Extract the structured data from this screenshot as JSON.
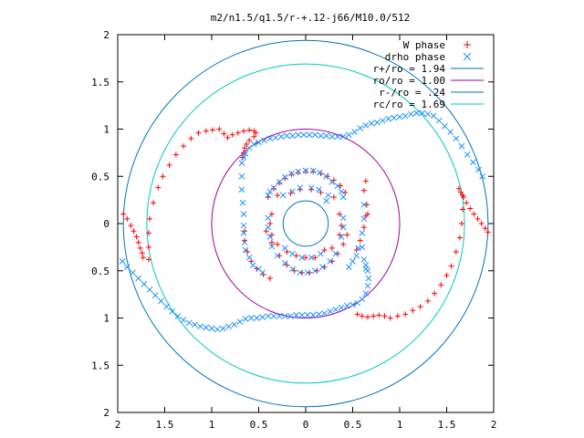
{
  "chart_data": {
    "type": "scatter",
    "title": "m2/n1.5/q1.5/r-+.12-j66/M10.0/512",
    "xlim": [
      -2,
      2
    ],
    "ylim": [
      -2,
      2
    ],
    "x_tick_labels": [
      "2",
      "1.5",
      "1",
      "0.5",
      "0",
      "0.5",
      "1",
      "1.5",
      "2"
    ],
    "y_tick_labels": [
      "2",
      "1.5",
      "1",
      "0.5",
      "0",
      "0.5",
      "1",
      "1.5",
      "2"
    ],
    "x_tick_values": [
      -2,
      -1.5,
      -1,
      -0.5,
      0,
      0.5,
      1,
      1.5,
      2
    ],
    "y_tick_values": [
      2,
      1.5,
      1,
      0.5,
      0,
      -0.5,
      -1,
      -1.5,
      -2
    ],
    "grid": false,
    "legend_position": "top-right",
    "series": [
      {
        "name": "W phase",
        "kind": "points",
        "marker": "plus",
        "color": "#ff0000",
        "points": [
          [
            -1.94,
            0.1
          ],
          [
            -1.9,
            0.05
          ],
          [
            -1.86,
            -0.02
          ],
          [
            -1.83,
            -0.08
          ],
          [
            -1.8,
            -0.14
          ],
          [
            -1.78,
            -0.2
          ],
          [
            -1.76,
            -0.26
          ],
          [
            -1.74,
            -0.31
          ],
          [
            -1.73,
            -0.36
          ],
          [
            -1.67,
            -0.38
          ],
          [
            -1.67,
            -0.25
          ],
          [
            -1.67,
            -0.1
          ],
          [
            -1.66,
            0.05
          ],
          [
            -1.62,
            0.22
          ],
          [
            -1.57,
            0.38
          ],
          [
            -1.52,
            0.5
          ],
          [
            -1.45,
            0.62
          ],
          [
            -1.38,
            0.73
          ],
          [
            -1.3,
            0.82
          ],
          [
            -1.22,
            0.9
          ],
          [
            -1.14,
            0.96
          ],
          [
            -1.06,
            0.98
          ],
          [
            -0.99,
            0.99
          ],
          [
            -0.92,
            1.0
          ],
          [
            -0.87,
            0.95
          ],
          [
            -0.83,
            0.91
          ],
          [
            -0.78,
            0.94
          ],
          [
            -0.72,
            0.96
          ],
          [
            -0.66,
            0.98
          ],
          [
            -0.6,
            0.99
          ],
          [
            -0.55,
            0.98
          ],
          [
            -0.53,
            0.96
          ],
          [
            -0.55,
            0.92
          ],
          [
            -0.6,
            0.88
          ],
          [
            -0.63,
            0.84
          ],
          [
            -0.65,
            0.8
          ],
          [
            -0.66,
            0.75
          ],
          [
            -0.67,
            0.7
          ],
          [
            1.63,
            0.37
          ],
          [
            1.65,
            0.33
          ],
          [
            1.68,
            0.28
          ],
          [
            1.71,
            0.22
          ],
          [
            1.75,
            0.16
          ],
          [
            1.79,
            0.1
          ],
          [
            1.83,
            0.05
          ],
          [
            1.87,
            0.0
          ],
          [
            1.91,
            -0.05
          ],
          [
            1.94,
            -0.09
          ],
          [
            1.67,
            0.3
          ],
          [
            1.67,
            0.15
          ],
          [
            1.66,
            0.0
          ],
          [
            1.64,
            -0.15
          ],
          [
            1.6,
            -0.3
          ],
          [
            1.55,
            -0.45
          ],
          [
            1.5,
            -0.55
          ],
          [
            1.44,
            -0.65
          ],
          [
            1.37,
            -0.74
          ],
          [
            1.3,
            -0.82
          ],
          [
            1.22,
            -0.88
          ],
          [
            1.14,
            -0.92
          ],
          [
            1.06,
            -0.96
          ],
          [
            0.98,
            -0.98
          ],
          [
            0.9,
            -1.0
          ],
          [
            0.84,
            -0.98
          ],
          [
            0.78,
            -0.97
          ],
          [
            0.72,
            -0.98
          ],
          [
            0.66,
            -0.99
          ],
          [
            0.6,
            -0.98
          ],
          [
            0.55,
            -0.96
          ],
          [
            0.0,
            0.55
          ],
          [
            0.08,
            0.55
          ],
          [
            0.16,
            0.53
          ],
          [
            0.23,
            0.5
          ],
          [
            0.3,
            0.46
          ],
          [
            0.37,
            0.4
          ],
          [
            0.42,
            0.33
          ],
          [
            -0.08,
            0.54
          ],
          [
            -0.15,
            0.52
          ],
          [
            -0.22,
            0.48
          ],
          [
            -0.28,
            0.43
          ],
          [
            -0.34,
            0.37
          ],
          [
            -0.4,
            0.28
          ],
          [
            -0.06,
            0.36
          ],
          [
            0.06,
            0.36
          ],
          [
            0.16,
            0.33
          ],
          [
            -0.16,
            0.32
          ],
          [
            -0.42,
            -0.08
          ],
          [
            -0.36,
            -0.2
          ],
          [
            -0.28,
            -0.34
          ],
          [
            -0.2,
            -0.44
          ],
          [
            -0.12,
            -0.5
          ],
          [
            -0.04,
            -0.52
          ],
          [
            0.04,
            -0.52
          ],
          [
            0.12,
            -0.5
          ],
          [
            0.2,
            -0.46
          ],
          [
            0.28,
            -0.4
          ],
          [
            0.34,
            -0.32
          ],
          [
            0.4,
            -0.22
          ],
          [
            0.44,
            -0.12
          ],
          [
            0.0,
            -0.36
          ],
          [
            0.1,
            -0.36
          ],
          [
            -0.1,
            -0.34
          ],
          [
            0.2,
            -0.28
          ],
          [
            -0.2,
            -0.3
          ],
          [
            -0.65,
            -0.08
          ],
          [
            -0.65,
            -0.18
          ],
          [
            -0.62,
            -0.3
          ],
          [
            -0.58,
            -0.4
          ],
          [
            -0.52,
            -0.48
          ],
          [
            -0.45,
            -0.54
          ],
          [
            -0.38,
            -0.58
          ],
          [
            0.65,
            0.2
          ],
          [
            0.64,
            0.08
          ],
          [
            0.62,
            -0.04
          ],
          [
            0.58,
            -0.18
          ],
          [
            0.54,
            -0.28
          ],
          [
            0.62,
            0.35
          ],
          [
            0.64,
            0.45
          ],
          [
            0.66,
            0.1
          ],
          [
            -0.36,
            0.1
          ],
          [
            -0.38,
            0.0
          ],
          [
            -0.36,
            -0.12
          ],
          [
            0.36,
            0.1
          ],
          [
            0.38,
            -0.02
          ],
          [
            0.36,
            -0.12
          ],
          [
            -0.3,
            0.3
          ],
          [
            0.3,
            0.28
          ],
          [
            -0.3,
            -0.22
          ],
          [
            0.28,
            -0.26
          ]
        ]
      },
      {
        "name": "drho phase",
        "kind": "points",
        "marker": "cross",
        "color": "#1e90ff",
        "points": [
          [
            -1.95,
            -0.4
          ],
          [
            -1.9,
            -0.46
          ],
          [
            -1.84,
            -0.52
          ],
          [
            -1.78,
            -0.58
          ],
          [
            -1.72,
            -0.64
          ],
          [
            -1.66,
            -0.7
          ],
          [
            -1.6,
            -0.76
          ],
          [
            -1.54,
            -0.82
          ],
          [
            -1.48,
            -0.88
          ],
          [
            -1.42,
            -0.93
          ],
          [
            -1.36,
            -0.98
          ],
          [
            -1.3,
            -1.02
          ],
          [
            -1.24,
            -1.05
          ],
          [
            -1.18,
            -1.07
          ],
          [
            -1.12,
            -1.09
          ],
          [
            -1.06,
            -1.1
          ],
          [
            -1.0,
            -1.11
          ],
          [
            -0.94,
            -1.12
          ],
          [
            -0.88,
            -1.11
          ],
          [
            -0.82,
            -1.09
          ],
          [
            -0.76,
            -1.07
          ],
          [
            -0.7,
            -1.04
          ],
          [
            -0.64,
            -1.01
          ],
          [
            -0.58,
            -1.0
          ],
          [
            -0.52,
            -1.0
          ],
          [
            -0.46,
            -0.99
          ],
          [
            -0.4,
            -0.98
          ],
          [
            -0.34,
            -0.98
          ],
          [
            -0.28,
            -0.98
          ],
          [
            -0.22,
            -0.98
          ],
          [
            -0.16,
            -0.98
          ],
          [
            -0.1,
            -0.97
          ],
          [
            -0.04,
            -0.97
          ],
          [
            0.02,
            -0.97
          ],
          [
            0.08,
            -0.97
          ],
          [
            0.14,
            -0.96
          ],
          [
            0.2,
            -0.95
          ],
          [
            0.26,
            -0.93
          ],
          [
            0.32,
            -0.91
          ],
          [
            0.38,
            -0.89
          ],
          [
            0.44,
            -0.87
          ],
          [
            0.5,
            -0.86
          ],
          [
            0.55,
            -0.84
          ],
          [
            0.6,
            -0.8
          ],
          [
            0.64,
            -0.74
          ],
          [
            0.66,
            -0.66
          ],
          [
            0.67,
            -0.58
          ],
          [
            0.66,
            -0.5
          ],
          [
            0.64,
            -0.44
          ],
          [
            -0.66,
            0.7
          ],
          [
            -0.64,
            0.74
          ],
          [
            -0.6,
            0.8
          ],
          [
            -0.55,
            0.84
          ],
          [
            -0.5,
            0.86
          ],
          [
            -0.44,
            0.88
          ],
          [
            -0.38,
            0.9
          ],
          [
            -0.32,
            0.91
          ],
          [
            -0.26,
            0.92
          ],
          [
            -0.2,
            0.93
          ],
          [
            -0.14,
            0.93
          ],
          [
            -0.08,
            0.94
          ],
          [
            -0.02,
            0.94
          ],
          [
            0.04,
            0.94
          ],
          [
            0.1,
            0.94
          ],
          [
            0.16,
            0.93
          ],
          [
            0.22,
            0.93
          ],
          [
            0.28,
            0.92
          ],
          [
            0.34,
            0.92
          ],
          [
            0.4,
            0.92
          ],
          [
            0.46,
            0.94
          ],
          [
            0.52,
            0.97
          ],
          [
            0.58,
            1.01
          ],
          [
            0.64,
            1.04
          ],
          [
            0.7,
            1.06
          ],
          [
            0.76,
            1.07
          ],
          [
            0.82,
            1.09
          ],
          [
            0.88,
            1.11
          ],
          [
            0.94,
            1.12
          ],
          [
            1.0,
            1.13
          ],
          [
            1.06,
            1.14
          ],
          [
            1.12,
            1.16
          ],
          [
            1.18,
            1.17
          ],
          [
            1.24,
            1.17
          ],
          [
            1.3,
            1.16
          ],
          [
            1.36,
            1.14
          ],
          [
            1.42,
            1.09
          ],
          [
            1.48,
            1.03
          ],
          [
            1.54,
            0.97
          ],
          [
            1.6,
            0.9
          ],
          [
            1.66,
            0.82
          ],
          [
            1.72,
            0.73
          ],
          [
            1.78,
            0.65
          ],
          [
            1.84,
            0.57
          ],
          [
            1.88,
            0.5
          ],
          [
            -0.68,
            0.64
          ],
          [
            -0.68,
            0.5
          ],
          [
            -0.68,
            0.36
          ],
          [
            -0.67,
            0.22
          ],
          [
            -0.66,
            0.1
          ],
          [
            -0.66,
            -0.02
          ],
          [
            -0.66,
            -0.1
          ],
          [
            -0.65,
            -0.2
          ],
          [
            0.62,
            0.2
          ],
          [
            0.62,
            0.05
          ],
          [
            0.6,
            -0.1
          ],
          [
            0.6,
            -0.25
          ],
          [
            0.62,
            -0.38
          ],
          [
            0.64,
            -0.48
          ],
          [
            0.0,
            0.56
          ],
          [
            0.08,
            0.56
          ],
          [
            0.15,
            0.54
          ],
          [
            0.22,
            0.5
          ],
          [
            0.28,
            0.44
          ],
          [
            0.34,
            0.4
          ],
          [
            0.38,
            0.34
          ],
          [
            0.4,
            0.28
          ],
          [
            -0.08,
            0.55
          ],
          [
            -0.15,
            0.53
          ],
          [
            -0.22,
            0.49
          ],
          [
            -0.28,
            0.44
          ],
          [
            -0.34,
            0.38
          ],
          [
            -0.38,
            0.34
          ],
          [
            -0.4,
            0.3
          ],
          [
            -0.06,
            0.38
          ],
          [
            0.06,
            0.38
          ],
          [
            0.14,
            0.36
          ],
          [
            -0.14,
            0.34
          ],
          [
            -0.24,
            0.3
          ],
          [
            0.24,
            0.3
          ],
          [
            0.22,
            0.24
          ],
          [
            -0.4,
            0.06
          ],
          [
            -0.4,
            -0.04
          ],
          [
            -0.38,
            -0.14
          ],
          [
            0.4,
            0.06
          ],
          [
            0.4,
            -0.04
          ],
          [
            0.38,
            -0.14
          ],
          [
            -0.36,
            -0.24
          ],
          [
            -0.3,
            -0.34
          ],
          [
            -0.22,
            -0.42
          ],
          [
            -0.14,
            -0.48
          ],
          [
            -0.06,
            -0.52
          ],
          [
            0.02,
            -0.52
          ],
          [
            0.1,
            -0.5
          ],
          [
            0.18,
            -0.46
          ],
          [
            0.26,
            -0.4
          ],
          [
            0.32,
            -0.32
          ],
          [
            -0.04,
            -0.36
          ],
          [
            0.06,
            -0.36
          ],
          [
            0.16,
            -0.32
          ],
          [
            -0.14,
            -0.32
          ],
          [
            -0.22,
            -0.26
          ],
          [
            -0.46,
            -0.52
          ],
          [
            -0.5,
            -0.48
          ],
          [
            -0.56,
            -0.44
          ],
          [
            -0.6,
            -0.36
          ],
          [
            -0.64,
            -0.28
          ],
          [
            0.46,
            -0.46
          ],
          [
            0.5,
            -0.4
          ],
          [
            0.54,
            -0.34
          ],
          [
            0.56,
            -0.26
          ]
        ]
      },
      {
        "name": "r+/ro = 1.94",
        "kind": "circle",
        "radius": 1.94,
        "color": "#0072bd"
      },
      {
        "name": "ro/ro = 1.00",
        "kind": "circle",
        "radius": 1.0,
        "color": "#a000a0"
      },
      {
        "name": "r-/ro = .24",
        "kind": "circle",
        "radius": 0.24,
        "color": "#0072bd"
      },
      {
        "name": "rc/ro = 1.69",
        "kind": "circle",
        "radius": 1.69,
        "color": "#00c8c8"
      }
    ]
  }
}
